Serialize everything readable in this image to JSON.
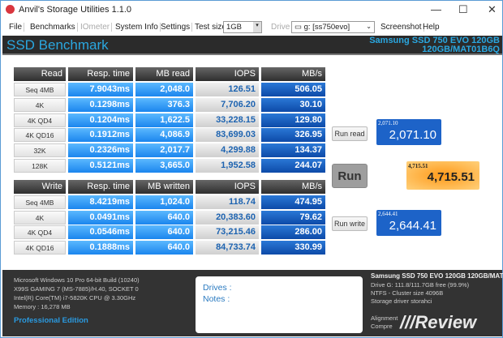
{
  "window": {
    "title": "Anvil's Storage Utilities 1.1.0",
    "minimize": "—",
    "maximize": "☐",
    "close": "✕"
  },
  "menu": {
    "file": "File",
    "benchmarks": "Benchmarks",
    "iometer": "IOmeter",
    "system_info": "System Info",
    "settings": "Settings",
    "test_size_label": "Test size",
    "test_size": "1GB",
    "drive_label": "Drive",
    "drive": "g: [ss750evo]",
    "screenshot": "Screenshot",
    "help": "Help"
  },
  "header": {
    "title": "SSD Benchmark",
    "drive_name": "Samsung SSD 750 EVO 120GB",
    "drive_fw": "120GB/MAT01B6Q"
  },
  "read": {
    "headers": [
      "Read",
      "Resp. time",
      "MB read",
      "IOPS",
      "MB/s"
    ],
    "rows": [
      [
        "Seq 4MB",
        "7.9043ms",
        "2,048.0",
        "126.51",
        "506.05"
      ],
      [
        "4K",
        "0.1298ms",
        "376.3",
        "7,706.20",
        "30.10"
      ],
      [
        "4K QD4",
        "0.1204ms",
        "1,622.5",
        "33,228.15",
        "129.80"
      ],
      [
        "4K QD16",
        "0.1912ms",
        "4,086.9",
        "83,699.03",
        "326.95"
      ],
      [
        "32K",
        "0.2326ms",
        "2,017.7",
        "4,299.88",
        "134.37"
      ],
      [
        "128K",
        "0.5121ms",
        "3,665.0",
        "1,952.58",
        "244.07"
      ]
    ]
  },
  "write": {
    "headers": [
      "Write",
      "Resp. time",
      "MB written",
      "IOPS",
      "MB/s"
    ],
    "rows": [
      [
        "Seq 4MB",
        "8.4219ms",
        "1,024.0",
        "118.74",
        "474.95"
      ],
      [
        "4K",
        "0.0491ms",
        "640.0",
        "20,383.60",
        "79.62"
      ],
      [
        "4K QD4",
        "0.0546ms",
        "640.0",
        "73,215.46",
        "286.00"
      ],
      [
        "4K QD16",
        "0.1888ms",
        "640.0",
        "84,733.74",
        "330.99"
      ]
    ]
  },
  "controls": {
    "run_read": "Run read",
    "run": "Run",
    "run_write": "Run write"
  },
  "scores": {
    "read_small": "2,071.10",
    "read": "2,071.10",
    "total_small": "4,715.51",
    "total": "4,715.51",
    "write_small": "2,644.41",
    "write": "2,644.41"
  },
  "footer": {
    "system": [
      "Microsoft Windows 10 Pro 64-bit Build (10240)",
      "X99S GAMING 7 (MS-7885)/H.40, SOCKET 0",
      "Intel(R) Core(TM) i7-5820K CPU @ 3.30GHz",
      "Memory : 16,278 MB"
    ],
    "edition": "Professional Edition",
    "drives_label": "Drives :",
    "notes_label": "Notes :",
    "drive_info": [
      "Samsung SSD 750 EVO 120GB 120GB/MAT01B6Q",
      "Drive G: 111.8/111.7GB free (99.9%)",
      "NTFS - Cluster size 4096B",
      "Storage driver  storahci",
      "",
      "Alignment",
      "Compre"
    ],
    "watermark": "Review"
  }
}
